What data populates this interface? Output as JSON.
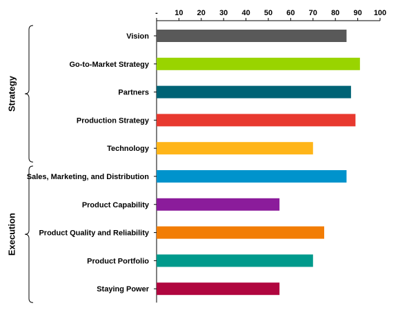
{
  "chart_data": {
    "type": "bar",
    "orientation": "horizontal",
    "categories": [
      "Vision",
      "Go-to-Market Strategy",
      "Partners",
      "Production Strategy",
      "Technology",
      "Sales, Marketing, and Distribution",
      "Product Capability",
      "Product Quality and Reliability",
      "Product Portfolio",
      "Staying Power"
    ],
    "values": [
      85,
      91,
      87,
      89,
      70,
      85,
      55,
      75,
      70,
      55
    ],
    "colors": [
      "#595959",
      "#99d400",
      "#006375",
      "#e8392f",
      "#ffb519",
      "#0093cc",
      "#8b1c9b",
      "#f27d05",
      "#009a8c",
      "#b0063f"
    ],
    "xlim": [
      0,
      100
    ],
    "x_ticks": [
      "-",
      "10",
      "20",
      "30",
      "40",
      "50",
      "60",
      "70",
      "80",
      "90",
      "100"
    ],
    "x_axis_position": "top",
    "grid": false,
    "legend": "none",
    "groups": [
      {
        "label": "Strategy",
        "categories": [
          "Vision",
          "Go-to-Market Strategy",
          "Partners",
          "Production Strategy",
          "Technology"
        ]
      },
      {
        "label": "Execution",
        "categories": [
          "Sales, Marketing, and Distribution",
          "Product Capability",
          "Product Quality and Reliability",
          "Product Portfolio",
          "Staying Power"
        ]
      }
    ]
  }
}
